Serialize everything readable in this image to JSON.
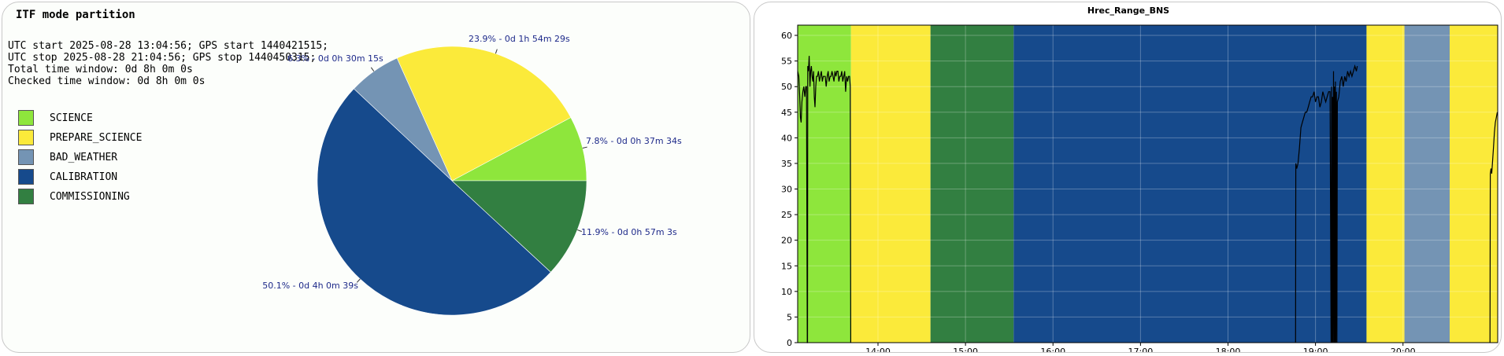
{
  "pie_panel": {
    "title": "ITF mode partition",
    "info_lines": [
      "UTC start 2025-08-28 13:04:56; GPS start 1440421515;",
      "UTC stop 2025-08-28 21:04:56; GPS stop 1440450315;",
      "Total time window: 0d 8h 0m 0s",
      "Checked time window: 0d 8h 0m 0s"
    ]
  },
  "colors": {
    "SCIENCE": "#8ee63c",
    "PREPARE_SCIENCE": "#fbea3a",
    "BAD_WEATHER": "#7494b4",
    "CALIBRATION": "#164a8c",
    "COMMISSIONING": "#327f41"
  },
  "chart_data": [
    {
      "type": "pie",
      "title": "ITF mode partition",
      "legend_position": "left",
      "slices": [
        {
          "name": "SCIENCE",
          "percent": 7.8,
          "label": "7.8% - 0d 0h 37m 34s"
        },
        {
          "name": "PREPARE_SCIENCE",
          "percent": 23.9,
          "label": "23.9% - 0d 1h 54m 29s"
        },
        {
          "name": "BAD_WEATHER",
          "percent": 6.3,
          "label": "6.3% - 0d 0h 30m 15s"
        },
        {
          "name": "CALIBRATION",
          "percent": 50.1,
          "label": "50.1% - 0d 4h 0m 39s"
        },
        {
          "name": "COMMISSIONING",
          "percent": 11.9,
          "label": "11.9% - 0d 0h 57m 3s"
        }
      ]
    },
    {
      "type": "line",
      "title": "Hrec_Range_BNS",
      "xlabel": "",
      "ylabel": "",
      "x_range": [
        "13:04:56",
        "21:04:56"
      ],
      "ylim": [
        0,
        62
      ],
      "yticks": [
        0,
        5,
        10,
        15,
        20,
        25,
        30,
        35,
        40,
        45,
        50,
        55,
        60
      ],
      "xticks": [
        "14:00",
        "15:00",
        "16:00",
        "17:00",
        "18:00",
        "19:00",
        "20:00"
      ],
      "grid": true,
      "mode_bands": [
        {
          "mode": "SCIENCE",
          "start": "13:04:56",
          "end": "13:41:30"
        },
        {
          "mode": "PREPARE_SCIENCE",
          "start": "13:41:30",
          "end": "14:36:00"
        },
        {
          "mode": "COMMISSIONING",
          "start": "14:36:00",
          "end": "15:33:00"
        },
        {
          "mode": "CALIBRATION",
          "start": "15:33:00",
          "end": "19:35:00"
        },
        {
          "mode": "PREPARE_SCIENCE",
          "start": "19:35:00",
          "end": "20:01:00"
        },
        {
          "mode": "BAD_WEATHER",
          "start": "20:01:00",
          "end": "20:32:00"
        },
        {
          "mode": "PREPARE_SCIENCE",
          "start": "20:32:00",
          "end": "21:04:56"
        }
      ],
      "series": [
        {
          "segments": [
            [
              [
                "13:04:56",
                53
              ],
              [
                "13:05:40",
                52
              ],
              [
                "13:06:20",
                48
              ],
              [
                "13:06:50",
                44
              ],
              [
                "13:07:20",
                43
              ],
              [
                "13:07:50",
                47
              ],
              [
                "13:08:30",
                49
              ],
              [
                "13:09:10",
                50
              ],
              [
                "13:09:50",
                48
              ],
              [
                "13:10:30",
                50
              ],
              [
                "13:11:00",
                50
              ],
              [
                "13:11:30",
                0
              ],
              [
                "13:11:40",
                0
              ],
              [
                "13:11:50",
                54
              ],
              [
                "13:12:20",
                53
              ],
              [
                "13:12:50",
                56
              ],
              [
                "13:13:20",
                50
              ],
              [
                "13:13:50",
                53
              ],
              [
                "13:14:20",
                54
              ],
              [
                "13:14:50",
                52
              ],
              [
                "13:15:20",
                51
              ],
              [
                "13:15:50",
                53
              ],
              [
                "13:16:20",
                48
              ],
              [
                "13:16:50",
                46
              ],
              [
                "13:17:20",
                50
              ],
              [
                "13:17:50",
                52
              ],
              [
                "13:18:30",
                52
              ],
              [
                "13:19:10",
                53
              ],
              [
                "13:19:50",
                51
              ],
              [
                "13:20:30",
                52
              ],
              [
                "13:21:10",
                53
              ],
              [
                "13:21:50",
                51
              ],
              [
                "13:22:30",
                52
              ],
              [
                "13:23:10",
                52
              ],
              [
                "13:23:50",
                52
              ],
              [
                "13:24:30",
                50
              ],
              [
                "13:25:10",
                52
              ],
              [
                "13:25:50",
                53
              ],
              [
                "13:26:30",
                51
              ],
              [
                "13:27:10",
                52
              ],
              [
                "13:27:50",
                52
              ],
              [
                "13:28:30",
                53
              ],
              [
                "13:29:10",
                52
              ],
              [
                "13:29:50",
                51
              ],
              [
                "13:30:30",
                53
              ],
              [
                "13:31:10",
                52
              ],
              [
                "13:31:50",
                53
              ],
              [
                "13:32:30",
                53
              ],
              [
                "13:33:10",
                51
              ],
              [
                "13:33:50",
                52
              ],
              [
                "13:34:30",
                52
              ],
              [
                "13:35:10",
                53
              ],
              [
                "13:35:50",
                51
              ],
              [
                "13:36:30",
                52
              ],
              [
                "13:37:10",
                53
              ],
              [
                "13:37:50",
                49
              ],
              [
                "13:38:30",
                52
              ],
              [
                "13:39:10",
                51
              ],
              [
                "13:39:50",
                52
              ],
              [
                "13:40:30",
                52
              ],
              [
                "13:41:00",
                50
              ],
              [
                "13:41:20",
                0
              ]
            ],
            [
              [
                "18:46:20",
                0
              ],
              [
                "18:46:30",
                35
              ],
              [
                "18:47:10",
                34
              ],
              [
                "18:48:00",
                35
              ],
              [
                "18:49:00",
                38
              ],
              [
                "18:50:00",
                42
              ],
              [
                "18:51:00",
                43
              ],
              [
                "18:52:00",
                44
              ],
              [
                "18:53:00",
                45
              ],
              [
                "18:54:00",
                45
              ],
              [
                "18:55:00",
                46
              ],
              [
                "18:56:00",
                47
              ],
              [
                "18:57:00",
                48
              ],
              [
                "18:58:00",
                48
              ],
              [
                "18:59:00",
                49
              ],
              [
                "19:00:00",
                47
              ],
              [
                "19:01:00",
                48
              ],
              [
                "19:02:00",
                48
              ],
              [
                "19:03:00",
                46
              ],
              [
                "19:04:00",
                47
              ],
              [
                "19:05:00",
                49
              ],
              [
                "19:06:00",
                48
              ],
              [
                "19:07:00",
                47
              ],
              [
                "19:08:00",
                48
              ],
              [
                "19:09:00",
                49
              ],
              [
                "19:10:00",
                49
              ],
              [
                "19:10:40",
                0
              ],
              [
                "19:11:00",
                50
              ],
              [
                "19:11:20",
                0
              ],
              [
                "19:11:40",
                48
              ],
              [
                "19:12:00",
                0
              ],
              [
                "19:12:20",
                53
              ],
              [
                "19:12:40",
                0
              ],
              [
                "19:13:00",
                50
              ],
              [
                "19:13:20",
                0
              ],
              [
                "19:13:40",
                51
              ],
              [
                "19:14:00",
                0
              ],
              [
                "19:14:20",
                49
              ],
              [
                "19:14:40",
                0
              ],
              [
                "19:15:00",
                47
              ],
              [
                "19:16:00",
                48
              ],
              [
                "19:17:00",
                51
              ],
              [
                "19:18:00",
                52
              ],
              [
                "19:19:00",
                50
              ],
              [
                "19:20:00",
                52
              ],
              [
                "19:21:00",
                51
              ],
              [
                "19:22:00",
                53
              ],
              [
                "19:23:00",
                52
              ],
              [
                "19:24:00",
                53
              ],
              [
                "19:25:00",
                52
              ],
              [
                "19:26:00",
                53
              ],
              [
                "19:27:00",
                54
              ],
              [
                "19:28:00",
                53
              ],
              [
                "19:28:40",
                54
              ]
            ],
            [
              [
                "20:59:40",
                0
              ],
              [
                "20:59:50",
                33
              ],
              [
                "21:00:20",
                34
              ],
              [
                "21:00:50",
                33
              ],
              [
                "21:01:20",
                35
              ],
              [
                "21:02:00",
                38
              ],
              [
                "21:02:40",
                41
              ],
              [
                "21:03:20",
                43
              ],
              [
                "21:04:00",
                44
              ],
              [
                "21:04:40",
                45
              ]
            ]
          ]
        }
      ]
    }
  ]
}
